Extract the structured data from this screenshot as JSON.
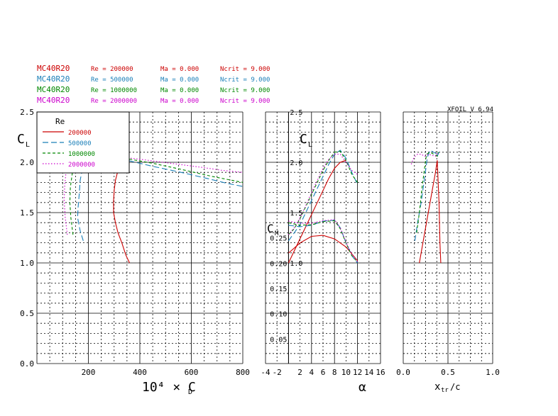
{
  "header": {
    "version": "XFOIL  V 6.94",
    "rows": [
      {
        "airfoil": "MC40R20",
        "re": "Re = 200000",
        "ma": "Ma = 0.000",
        "ncrit": "Ncrit = 9.000",
        "color": "#cc0000"
      },
      {
        "airfoil": "MC40R20",
        "re": "Re = 500000",
        "ma": "Ma = 0.000",
        "ncrit": "Ncrit = 9.000",
        "color": "#1a7fb8"
      },
      {
        "airfoil": "MC40R20",
        "re": "Re = 1000000",
        "ma": "Ma = 0.000",
        "ncrit": "Ncrit = 9.000",
        "color": "#008800"
      },
      {
        "airfoil": "MC40R20",
        "re": "Re = 2000000",
        "ma": "Ma = 0.000",
        "ncrit": "Ncrit = 9.000",
        "color": "#cc00cc"
      }
    ]
  },
  "legend": {
    "title": "Re",
    "entries": [
      "200000",
      "500000",
      "1000000",
      "2000000"
    ]
  },
  "chart_data": [
    {
      "type": "line",
      "xlabel": "10⁴ × C",
      "xlabel_sub": "D",
      "ylabel": "C",
      "ylabel_sub": "L",
      "xlim": [
        0,
        800
      ],
      "ylim": [
        0,
        2.5
      ],
      "x_ticks": [
        "200",
        "400",
        "600",
        "800"
      ],
      "y_ticks": [
        "0.0",
        "0.5",
        "1.0",
        "1.5",
        "2.0",
        "2.5"
      ],
      "grid": true,
      "series": [
        {
          "name": "200000",
          "color": "#cc0000",
          "dash": "solid",
          "points": [
            [
              360,
              1.0
            ],
            [
              345,
              1.08
            ],
            [
              330,
              1.2
            ],
            [
              315,
              1.3
            ],
            [
              305,
              1.4
            ],
            [
              298,
              1.5
            ],
            [
              298,
              1.62
            ],
            [
              300,
              1.72
            ],
            [
              305,
              1.82
            ],
            [
              315,
              1.92
            ],
            [
              330,
              1.98
            ],
            [
              345,
              2.01
            ],
            [
              360,
              2.02
            ]
          ]
        },
        {
          "name": "500000",
          "color": "#1a7fb8",
          "dash": "long",
          "points": [
            [
              180,
              1.22
            ],
            [
              168,
              1.32
            ],
            [
              158,
              1.45
            ],
            [
              160,
              1.55
            ],
            [
              165,
              1.7
            ],
            [
              168,
              1.82
            ],
            [
              178,
              1.95
            ],
            [
              200,
              2.05
            ],
            [
              230,
              2.08
            ],
            [
              280,
              2.06
            ],
            [
              350,
              2.02
            ],
            [
              450,
              1.96
            ],
            [
              560,
              1.9
            ],
            [
              660,
              1.84
            ],
            [
              740,
              1.79
            ],
            [
              800,
              1.76
            ]
          ]
        },
        {
          "name": "1000000",
          "color": "#008800",
          "dash": "short",
          "points": [
            [
              140,
              1.28
            ],
            [
              132,
              1.45
            ],
            [
              128,
              1.6
            ],
            [
              130,
              1.75
            ],
            [
              138,
              1.9
            ],
            [
              150,
              2.02
            ],
            [
              172,
              2.1
            ],
            [
              205,
              2.11
            ],
            [
              260,
              2.08
            ],
            [
              340,
              2.04
            ],
            [
              450,
              1.99
            ],
            [
              560,
              1.93
            ],
            [
              680,
              1.86
            ],
            [
              760,
              1.82
            ],
            [
              800,
              1.8
            ]
          ]
        },
        {
          "name": "2000000",
          "color": "#cc00cc",
          "dash": "dot",
          "points": [
            [
              118,
              1.28
            ],
            [
              110,
              1.45
            ],
            [
              106,
              1.62
            ],
            [
              108,
              1.78
            ],
            [
              114,
              1.92
            ],
            [
              128,
              2.02
            ],
            [
              150,
              2.08
            ],
            [
              200,
              2.08
            ],
            [
              300,
              2.06
            ],
            [
              400,
              2.03
            ],
            [
              520,
              1.99
            ],
            [
              640,
              1.95
            ],
            [
              720,
              1.92
            ],
            [
              800,
              1.9
            ]
          ]
        }
      ]
    },
    {
      "type": "line",
      "xlabel": "α",
      "ylabel": "C",
      "ylabel_sub": "L",
      "ylabel2": "C",
      "ylabel2_sub": "M",
      "xlim": [
        -4,
        16
      ],
      "ylim": [
        0,
        2.5
      ],
      "cm_lim": [
        0.0,
        0.3
      ],
      "x_ticks": [
        "-4",
        "-2",
        "2",
        "4",
        "6",
        "8",
        "10",
        "12",
        "14",
        "16"
      ],
      "y_ticks": [
        "1.0",
        "1.5",
        "2.0",
        "2.5"
      ],
      "cm_ticks": [
        "0.05",
        "0.10",
        "0.15",
        "0.20",
        "0.25"
      ],
      "grid": true,
      "cl_series": [
        {
          "name": "200000",
          "color": "#cc0000",
          "dash": "solid",
          "points": [
            [
              0,
              1.0
            ],
            [
              1,
              1.12
            ],
            [
              2,
              1.24
            ],
            [
              3,
              1.36
            ],
            [
              4,
              1.48
            ],
            [
              5,
              1.6
            ],
            [
              6,
              1.72
            ],
            [
              7,
              1.84
            ],
            [
              8,
              1.94
            ],
            [
              9,
              2.0
            ],
            [
              10,
              2.02
            ]
          ]
        },
        {
          "name": "500000",
          "color": "#1a7fb8",
          "dash": "long",
          "points": [
            [
              0,
              1.22
            ],
            [
              1,
              1.3
            ],
            [
              2,
              1.38
            ],
            [
              3,
              1.5
            ],
            [
              4,
              1.62
            ],
            [
              5,
              1.74
            ],
            [
              6,
              1.86
            ],
            [
              7,
              1.98
            ],
            [
              8,
              2.08
            ],
            [
              9,
              2.12
            ],
            [
              10,
              2.04
            ],
            [
              11,
              1.9
            ],
            [
              12,
              1.78
            ]
          ]
        },
        {
          "name": "1000000",
          "color": "#008800",
          "dash": "short",
          "points": [
            [
              0,
              1.28
            ],
            [
              1,
              1.34
            ],
            [
              2,
              1.44
            ],
            [
              3,
              1.56
            ],
            [
              4,
              1.68
            ],
            [
              5,
              1.8
            ],
            [
              6,
              1.92
            ],
            [
              7,
              2.02
            ],
            [
              8,
              2.1
            ],
            [
              9,
              2.11
            ],
            [
              10,
              2.02
            ],
            [
              11,
              1.88
            ],
            [
              12,
              1.8
            ]
          ]
        },
        {
          "name": "2000000",
          "color": "#cc00cc",
          "dash": "dot",
          "points": [
            [
              0,
              1.28
            ],
            [
              1,
              1.35
            ],
            [
              2,
              1.45
            ],
            [
              3,
              1.57
            ],
            [
              4,
              1.7
            ],
            [
              5,
              1.82
            ],
            [
              6,
              1.94
            ],
            [
              7,
              2.03
            ],
            [
              8,
              2.08
            ],
            [
              9,
              2.08
            ],
            [
              10,
              2.0
            ],
            [
              11,
              1.92
            ],
            [
              12,
              1.88
            ]
          ]
        }
      ],
      "cm_series": [
        {
          "name": "200000",
          "color": "#cc0000",
          "dash": "solid",
          "points": [
            [
              0,
              0.22
            ],
            [
              2,
              0.24
            ],
            [
              4,
              0.253
            ],
            [
              6,
              0.255
            ],
            [
              8,
              0.248
            ],
            [
              10,
              0.232
            ],
            [
              12,
              0.205
            ]
          ]
        },
        {
          "name": "500000",
          "color": "#1a7fb8",
          "dash": "long",
          "points": [
            [
              0,
              0.275
            ],
            [
              2,
              0.272
            ],
            [
              4,
              0.275
            ],
            [
              6,
              0.283
            ],
            [
              8,
              0.285
            ],
            [
              9,
              0.27
            ],
            [
              10,
              0.24
            ],
            [
              11,
              0.215
            ],
            [
              12,
              0.2
            ]
          ]
        },
        {
          "name": "1000000",
          "color": "#008800",
          "dash": "short",
          "points": [
            [
              0,
              0.28
            ],
            [
              2,
              0.275
            ],
            [
              4,
              0.276
            ],
            [
              6,
              0.282
            ],
            [
              8,
              0.284
            ],
            [
              9,
              0.268
            ],
            [
              10,
              0.24
            ],
            [
              11,
              0.215
            ],
            [
              12,
              0.202
            ]
          ]
        },
        {
          "name": "2000000",
          "color": "#cc00cc",
          "dash": "dot",
          "points": [
            [
              0,
              0.283
            ],
            [
              2,
              0.279
            ],
            [
              4,
              0.279
            ],
            [
              6,
              0.284
            ],
            [
              8,
              0.286
            ],
            [
              9,
              0.27
            ],
            [
              10,
              0.242
            ],
            [
              11,
              0.218
            ],
            [
              12,
              0.203
            ]
          ]
        }
      ]
    },
    {
      "type": "line",
      "xlabel": "x",
      "xlabel_sub": "tr",
      "xlabel_tail": " /c",
      "xlim": [
        0,
        1
      ],
      "ylim": [
        0,
        2.5
      ],
      "x_ticks": [
        "0.0",
        "0.5",
        "1.0"
      ],
      "grid": true,
      "series": [
        {
          "name": "200000",
          "color": "#cc0000",
          "dash": "solid",
          "points": [
            [
              0.18,
              1.0
            ],
            [
              0.22,
              1.2
            ],
            [
              0.27,
              1.45
            ],
            [
              0.32,
              1.7
            ],
            [
              0.36,
              1.9
            ],
            [
              0.38,
              2.02
            ],
            [
              0.4,
              1.6
            ],
            [
              0.41,
              1.2
            ],
            [
              0.42,
              1.0
            ]
          ]
        },
        {
          "name": "500000",
          "color": "#1a7fb8",
          "dash": "long",
          "points": [
            [
              0.13,
              1.22
            ],
            [
              0.16,
              1.4
            ],
            [
              0.2,
              1.6
            ],
            [
              0.24,
              1.85
            ],
            [
              0.27,
              2.05
            ],
            [
              0.3,
              2.12
            ],
            [
              0.34,
              2.1
            ],
            [
              0.38,
              2.08
            ],
            [
              0.4,
              2.1
            ],
            [
              0.38,
              2.06
            ]
          ]
        },
        {
          "name": "1000000",
          "color": "#008800",
          "dash": "short",
          "points": [
            [
              0.15,
              1.3
            ],
            [
              0.18,
              1.5
            ],
            [
              0.21,
              1.75
            ],
            [
              0.24,
              1.95
            ],
            [
              0.26,
              2.08
            ],
            [
              0.3,
              2.1
            ],
            [
              0.34,
              2.08
            ],
            [
              0.38,
              2.06
            ],
            [
              0.39,
              2.1
            ]
          ]
        },
        {
          "name": "2000000",
          "color": "#cc00cc",
          "dash": "dot",
          "points": [
            [
              0.09,
              1.98
            ],
            [
              0.12,
              2.05
            ],
            [
              0.16,
              2.08
            ],
            [
              0.2,
              2.08
            ],
            [
              0.24,
              2.06
            ],
            [
              0.28,
              2.08
            ],
            [
              0.32,
              2.07
            ],
            [
              0.36,
              2.06
            ],
            [
              0.38,
              2.09
            ]
          ]
        }
      ]
    }
  ]
}
